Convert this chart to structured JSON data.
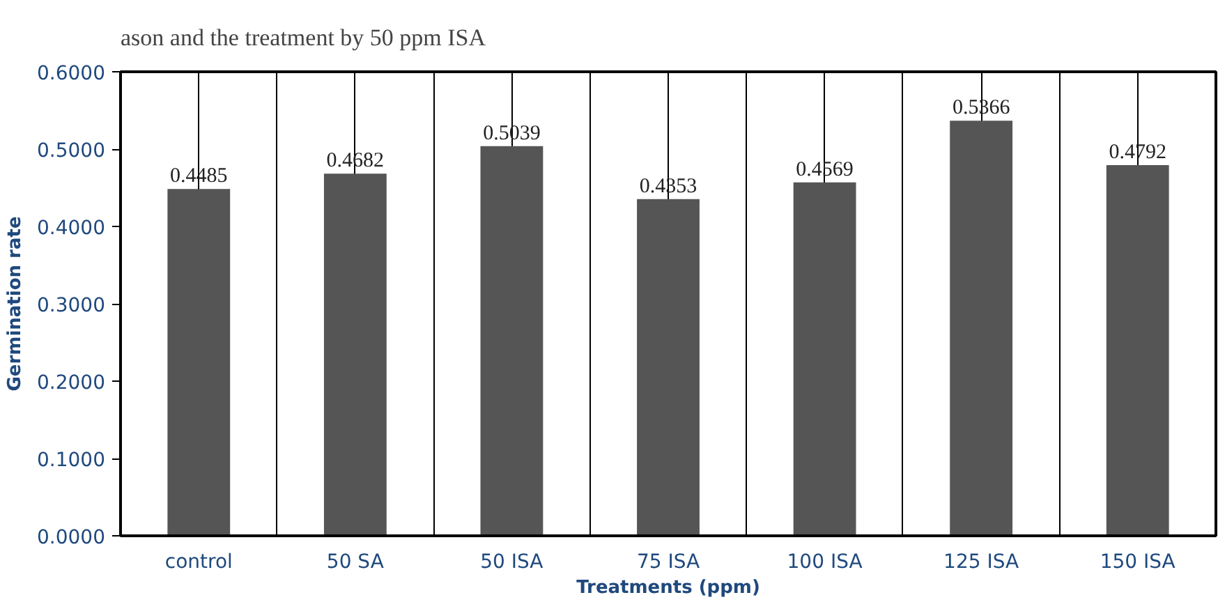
{
  "chart_data": {
    "type": "bar",
    "xlabel": "Treatments (ppm)",
    "ylabel": "Germination rate",
    "annotations": [
      "ason and the treatment by 50 ppm ISA"
    ],
    "categories": [
      "control",
      "50 SA",
      "50 ISA",
      "75 ISA",
      "100 ISA",
      "125 ISA",
      "150 ISA"
    ],
    "values": [
      0.4485,
      0.4682,
      0.5039,
      0.4353,
      0.4569,
      0.5366,
      0.4792
    ],
    "color": "#555555",
    "data_labels": true,
    "grid": "x",
    "ylim": [
      0,
      0.6
    ],
    "yticks": [
      {
        "value": 0,
        "label": "0.0000"
      },
      {
        "value": 0.1,
        "label": "0.1000"
      },
      {
        "value": 0.2,
        "label": "0.2000"
      },
      {
        "value": 0.3,
        "label": "0.3000"
      },
      {
        "value": 0.4,
        "label": "0.4000"
      },
      {
        "value": 0.5,
        "label": "0.5000"
      },
      {
        "value": 0.6,
        "label": "0.6000"
      }
    ]
  }
}
